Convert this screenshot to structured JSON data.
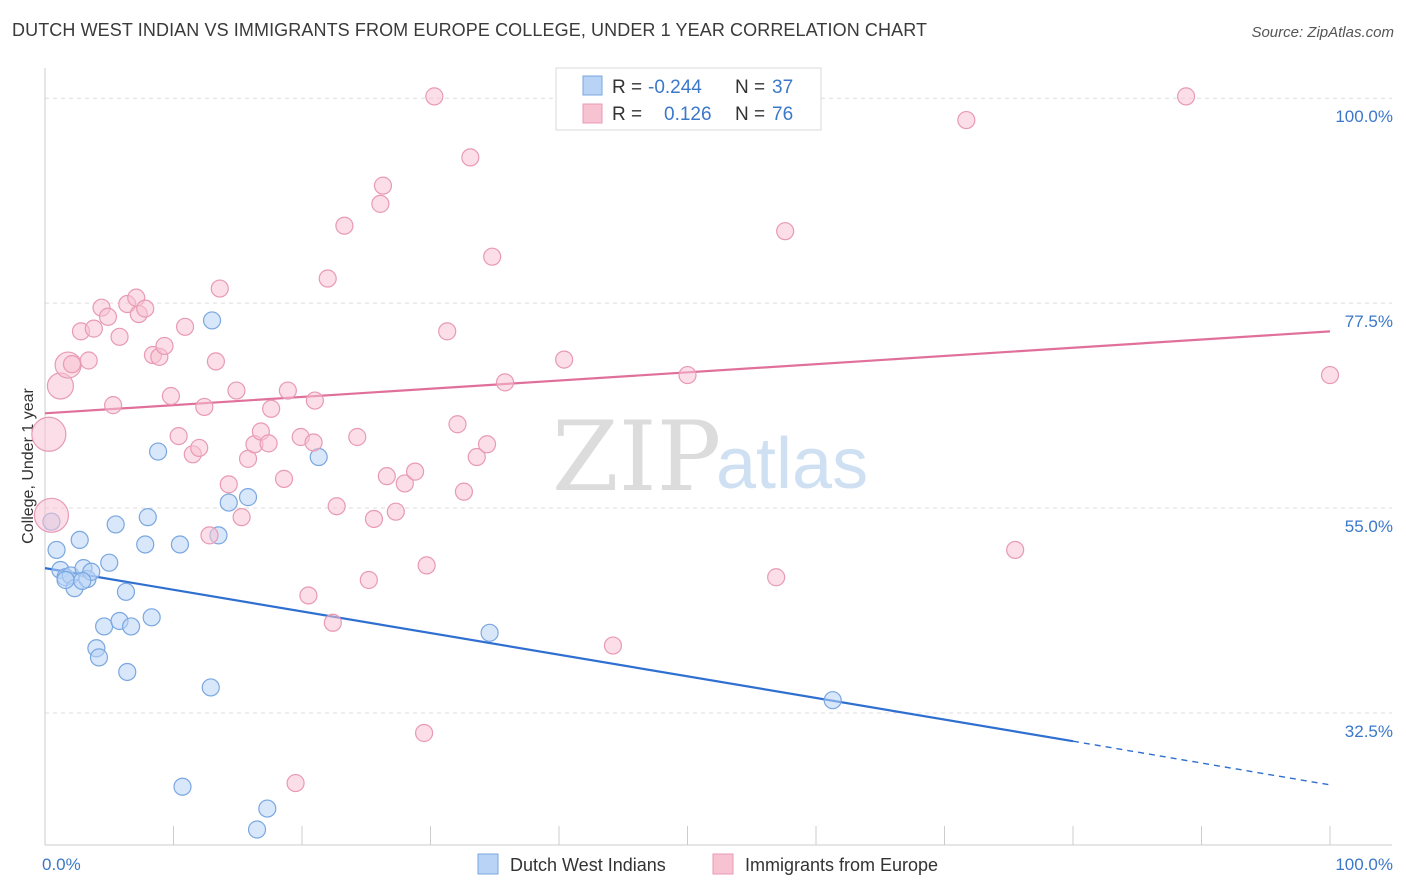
{
  "header": {
    "title": "DUTCH WEST INDIAN VS IMMIGRANTS FROM EUROPE COLLEGE, UNDER 1 YEAR CORRELATION CHART",
    "source": "Source: ZipAtlas.com"
  },
  "watermark": {
    "zip": "ZIP",
    "atlas": "atlas"
  },
  "legend_top": {
    "rows": [
      {
        "r_label": "R =",
        "r_value": "-0.244",
        "n_label": "N =",
        "n_value": "37"
      },
      {
        "r_label": "R =",
        "r_value": "0.126",
        "n_label": "N =",
        "n_value": "76"
      }
    ]
  },
  "legend_bottom": {
    "items": [
      {
        "label": "Dutch West Indians"
      },
      {
        "label": "Immigrants from Europe"
      }
    ]
  },
  "colors": {
    "blue_fill": "#b8d3f5",
    "blue_stroke": "#7aa7e0",
    "blue_line": "#2f6fd0",
    "pink_fill": "#f7c3d3",
    "pink_stroke": "#e89ab4",
    "pink_line": "#e0709a",
    "tick": "#3b78c9",
    "grid": "#dedede"
  },
  "chart_data": {
    "type": "scatter",
    "title": "DUTCH WEST INDIAN VS IMMIGRANTS FROM EUROPE COLLEGE, UNDER 1 YEAR CORRELATION CHART",
    "xlabel": "",
    "ylabel": "College, Under 1 year",
    "xlim": [
      0,
      100
    ],
    "ylim": [
      18,
      102
    ],
    "x_ticks": [
      "0.0%",
      "100.0%"
    ],
    "y_ticks": [
      {
        "value": 100,
        "label": "100.0%"
      },
      {
        "value": 77.5,
        "label": "77.5%"
      },
      {
        "value": 55,
        "label": "55.0%"
      },
      {
        "value": 32.5,
        "label": "32.5%"
      }
    ],
    "grid": true,
    "series": [
      {
        "name": "Dutch West Indians",
        "trend": {
          "x0": 0,
          "y0": 48.4,
          "x1": 80,
          "y1": 29.4,
          "dash_to_x": 100,
          "dash_to_y": 24.6
        },
        "points": [
          {
            "x": 0.5,
            "y": 53.5,
            "s": "m"
          },
          {
            "x": 0.9,
            "y": 50.4,
            "s": "m"
          },
          {
            "x": 1.2,
            "y": 48.2,
            "s": "m"
          },
          {
            "x": 1.6,
            "y": 47.4,
            "s": "m"
          },
          {
            "x": 2.0,
            "y": 47.6,
            "s": "m"
          },
          {
            "x": 2.3,
            "y": 46.2,
            "s": "m"
          },
          {
            "x": 2.7,
            "y": 51.5,
            "s": "m"
          },
          {
            "x": 3.0,
            "y": 48.4,
            "s": "m"
          },
          {
            "x": 3.3,
            "y": 47.2,
            "s": "m"
          },
          {
            "x": 3.6,
            "y": 48.0,
            "s": "m"
          },
          {
            "x": 4.0,
            "y": 39.6,
            "s": "m"
          },
          {
            "x": 4.2,
            "y": 38.6,
            "s": "m"
          },
          {
            "x": 4.6,
            "y": 42.0,
            "s": "m"
          },
          {
            "x": 5.0,
            "y": 49.0,
            "s": "m"
          },
          {
            "x": 5.5,
            "y": 53.2,
            "s": "m"
          },
          {
            "x": 5.8,
            "y": 42.6,
            "s": "m"
          },
          {
            "x": 6.3,
            "y": 45.8,
            "s": "m"
          },
          {
            "x": 6.4,
            "y": 37.0,
            "s": "m"
          },
          {
            "x": 6.7,
            "y": 42.0,
            "s": "m"
          },
          {
            "x": 7.8,
            "y": 51.0,
            "s": "m"
          },
          {
            "x": 8.0,
            "y": 54.0,
            "s": "m"
          },
          {
            "x": 8.3,
            "y": 43.0,
            "s": "m"
          },
          {
            "x": 8.8,
            "y": 61.2,
            "s": "m"
          },
          {
            "x": 10.5,
            "y": 51.0,
            "s": "m"
          },
          {
            "x": 10.7,
            "y": 24.4,
            "s": "m"
          },
          {
            "x": 12.9,
            "y": 35.3,
            "s": "m"
          },
          {
            "x": 13.0,
            "y": 75.6,
            "s": "m"
          },
          {
            "x": 13.5,
            "y": 52.0,
            "s": "m"
          },
          {
            "x": 14.3,
            "y": 55.6,
            "s": "m"
          },
          {
            "x": 15.8,
            "y": 56.2,
            "s": "m"
          },
          {
            "x": 16.5,
            "y": 19.7,
            "s": "m"
          },
          {
            "x": 17.3,
            "y": 22.0,
            "s": "m"
          },
          {
            "x": 21.3,
            "y": 60.6,
            "s": "m"
          },
          {
            "x": 34.6,
            "y": 41.3,
            "s": "m"
          },
          {
            "x": 61.3,
            "y": 33.9,
            "s": "m"
          },
          {
            "x": 1.6,
            "y": 47.1,
            "s": "m"
          },
          {
            "x": 2.9,
            "y": 47.0,
            "s": "m"
          }
        ]
      },
      {
        "name": "Immigrants from Europe",
        "trend": {
          "x0": 0,
          "y0": 65.4,
          "x1": 100,
          "y1": 74.4
        },
        "points": [
          {
            "x": 0.3,
            "y": 63.1,
            "s": "xl"
          },
          {
            "x": 0.5,
            "y": 54.2,
            "s": "xl"
          },
          {
            "x": 1.2,
            "y": 68.4,
            "s": "l"
          },
          {
            "x": 1.8,
            "y": 70.7,
            "s": "l"
          },
          {
            "x": 2.1,
            "y": 70.8,
            "s": "m"
          },
          {
            "x": 2.8,
            "y": 74.4,
            "s": "m"
          },
          {
            "x": 3.4,
            "y": 71.2,
            "s": "m"
          },
          {
            "x": 3.8,
            "y": 74.7,
            "s": "m"
          },
          {
            "x": 4.4,
            "y": 77.0,
            "s": "m"
          },
          {
            "x": 4.9,
            "y": 76.0,
            "s": "m"
          },
          {
            "x": 5.3,
            "y": 66.3,
            "s": "m"
          },
          {
            "x": 5.8,
            "y": 73.8,
            "s": "m"
          },
          {
            "x": 6.4,
            "y": 77.4,
            "s": "m"
          },
          {
            "x": 7.1,
            "y": 78.1,
            "s": "m"
          },
          {
            "x": 7.3,
            "y": 76.3,
            "s": "m"
          },
          {
            "x": 7.8,
            "y": 76.9,
            "s": "m"
          },
          {
            "x": 8.4,
            "y": 71.8,
            "s": "m"
          },
          {
            "x": 8.9,
            "y": 71.6,
            "s": "m"
          },
          {
            "x": 9.3,
            "y": 72.8,
            "s": "m"
          },
          {
            "x": 9.8,
            "y": 67.3,
            "s": "m"
          },
          {
            "x": 10.4,
            "y": 62.9,
            "s": "m"
          },
          {
            "x": 10.9,
            "y": 74.9,
            "s": "m"
          },
          {
            "x": 11.5,
            "y": 60.9,
            "s": "m"
          },
          {
            "x": 12.0,
            "y": 61.6,
            "s": "m"
          },
          {
            "x": 12.4,
            "y": 66.1,
            "s": "m"
          },
          {
            "x": 12.8,
            "y": 52.0,
            "s": "m"
          },
          {
            "x": 13.3,
            "y": 71.1,
            "s": "m"
          },
          {
            "x": 13.6,
            "y": 79.1,
            "s": "m"
          },
          {
            "x": 14.3,
            "y": 57.6,
            "s": "m"
          },
          {
            "x": 14.9,
            "y": 67.9,
            "s": "m"
          },
          {
            "x": 15.3,
            "y": 54.0,
            "s": "m"
          },
          {
            "x": 15.8,
            "y": 60.4,
            "s": "m"
          },
          {
            "x": 16.3,
            "y": 62.0,
            "s": "m"
          },
          {
            "x": 16.8,
            "y": 63.4,
            "s": "m"
          },
          {
            "x": 17.4,
            "y": 62.1,
            "s": "m"
          },
          {
            "x": 17.6,
            "y": 65.9,
            "s": "m"
          },
          {
            "x": 18.6,
            "y": 58.2,
            "s": "m"
          },
          {
            "x": 18.9,
            "y": 67.9,
            "s": "m"
          },
          {
            "x": 19.5,
            "y": 24.8,
            "s": "m"
          },
          {
            "x": 19.9,
            "y": 62.8,
            "s": "m"
          },
          {
            "x": 20.5,
            "y": 45.4,
            "s": "m"
          },
          {
            "x": 20.9,
            "y": 62.2,
            "s": "m"
          },
          {
            "x": 21.0,
            "y": 66.8,
            "s": "m"
          },
          {
            "x": 22.0,
            "y": 80.2,
            "s": "m"
          },
          {
            "x": 22.4,
            "y": 42.4,
            "s": "m"
          },
          {
            "x": 22.7,
            "y": 55.2,
            "s": "m"
          },
          {
            "x": 23.3,
            "y": 86.0,
            "s": "m"
          },
          {
            "x": 24.3,
            "y": 62.8,
            "s": "m"
          },
          {
            "x": 25.2,
            "y": 47.1,
            "s": "m"
          },
          {
            "x": 25.6,
            "y": 53.8,
            "s": "m"
          },
          {
            "x": 26.1,
            "y": 88.4,
            "s": "m"
          },
          {
            "x": 26.3,
            "y": 90.4,
            "s": "m"
          },
          {
            "x": 26.6,
            "y": 58.5,
            "s": "m"
          },
          {
            "x": 27.3,
            "y": 54.6,
            "s": "m"
          },
          {
            "x": 28.0,
            "y": 57.7,
            "s": "m"
          },
          {
            "x": 28.8,
            "y": 59.0,
            "s": "m"
          },
          {
            "x": 29.5,
            "y": 30.3,
            "s": "m"
          },
          {
            "x": 29.7,
            "y": 48.7,
            "s": "m"
          },
          {
            "x": 30.3,
            "y": 100.2,
            "s": "m"
          },
          {
            "x": 31.3,
            "y": 74.4,
            "s": "m"
          },
          {
            "x": 32.1,
            "y": 64.2,
            "s": "m"
          },
          {
            "x": 32.6,
            "y": 56.8,
            "s": "m"
          },
          {
            "x": 33.1,
            "y": 93.5,
            "s": "m"
          },
          {
            "x": 33.6,
            "y": 60.6,
            "s": "m"
          },
          {
            "x": 34.4,
            "y": 62.0,
            "s": "m"
          },
          {
            "x": 34.8,
            "y": 82.6,
            "s": "m"
          },
          {
            "x": 35.8,
            "y": 68.8,
            "s": "m"
          },
          {
            "x": 40.4,
            "y": 71.3,
            "s": "m"
          },
          {
            "x": 44.2,
            "y": 39.9,
            "s": "m"
          },
          {
            "x": 50.0,
            "y": 69.6,
            "s": "m"
          },
          {
            "x": 56.9,
            "y": 47.4,
            "s": "m"
          },
          {
            "x": 57.6,
            "y": 85.4,
            "s": "m"
          },
          {
            "x": 71.7,
            "y": 97.6,
            "s": "m"
          },
          {
            "x": 75.5,
            "y": 50.4,
            "s": "m"
          },
          {
            "x": 88.8,
            "y": 100.2,
            "s": "m"
          },
          {
            "x": 100.0,
            "y": 69.6,
            "s": "m"
          }
        ]
      }
    ]
  }
}
